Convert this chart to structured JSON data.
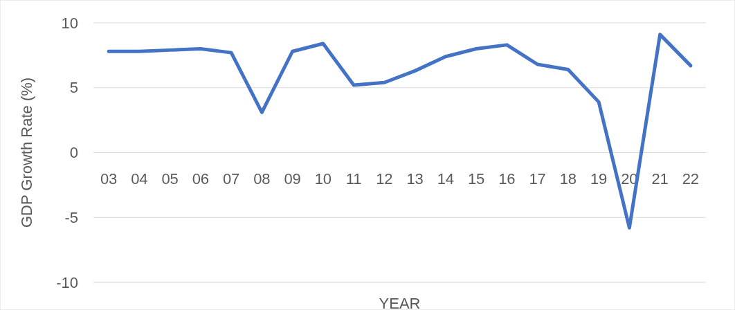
{
  "chart_data": {
    "type": "line",
    "xlabel": "YEAR",
    "ylabel": "GDP Growth Rate (%)",
    "categories": [
      "03",
      "04",
      "05",
      "06",
      "07",
      "08",
      "09",
      "10",
      "11",
      "12",
      "13",
      "14",
      "15",
      "16",
      "17",
      "18",
      "19",
      "20",
      "21",
      "22"
    ],
    "series": [
      {
        "color": "#4472c4",
        "values": [
          7.8,
          7.8,
          7.9,
          8.0,
          7.7,
          3.1,
          7.8,
          8.4,
          5.2,
          5.4,
          6.3,
          7.4,
          8.0,
          8.3,
          6.8,
          6.4,
          3.9,
          -5.8,
          9.1,
          6.7
        ]
      }
    ],
    "ylim": [
      -10,
      10
    ],
    "yticks": [
      -10,
      -5,
      0,
      5,
      10
    ],
    "grid": "y",
    "marker": "none",
    "line_style": "solid"
  }
}
